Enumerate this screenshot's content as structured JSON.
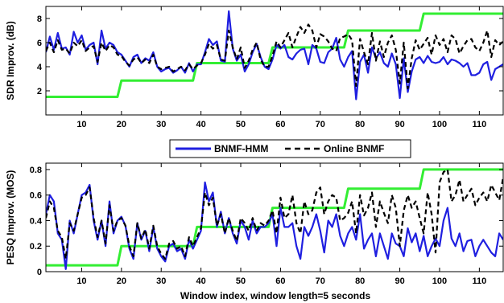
{
  "chart_data": [
    {
      "type": "line",
      "ylabel": "SDR Improv. (dB)",
      "xlabel": "",
      "xlim": [
        1,
        116
      ],
      "ylim": [
        0,
        9
      ],
      "xticks": [
        10,
        20,
        30,
        40,
        50,
        60,
        70,
        80,
        90,
        100,
        110
      ],
      "yticks": [
        2,
        4,
        6,
        8
      ],
      "series": [
        {
          "name": "BNMF-HMM",
          "color": "#1f1fe0",
          "style": "solid",
          "x": [
            1,
            2,
            3,
            4,
            5,
            6,
            7,
            8,
            9,
            10,
            11,
            12,
            13,
            14,
            15,
            16,
            17,
            18,
            19,
            20,
            21,
            22,
            23,
            24,
            25,
            26,
            27,
            28,
            29,
            30,
            31,
            32,
            33,
            34,
            35,
            36,
            37,
            38,
            39,
            40,
            41,
            42,
            43,
            44,
            45,
            46,
            47,
            48,
            49,
            50,
            51,
            52,
            53,
            54,
            55,
            56,
            57,
            58,
            59,
            60,
            61,
            62,
            63,
            64,
            65,
            66,
            67,
            68,
            69,
            70,
            71,
            72,
            73,
            74,
            75,
            76,
            77,
            78,
            79,
            80,
            81,
            82,
            83,
            84,
            85,
            86,
            87,
            88,
            89,
            90,
            91,
            92,
            93,
            94,
            95,
            96,
            97,
            98,
            99,
            100,
            101,
            102,
            103,
            104,
            105,
            106,
            107,
            108,
            109,
            110,
            111,
            112,
            113,
            114,
            115,
            116
          ],
          "y": [
            5.2,
            6.5,
            5.4,
            6.8,
            5.5,
            5.6,
            5.0,
            6.9,
            6.0,
            6.6,
            5.4,
            5.8,
            6.0,
            4.2,
            7.0,
            5.5,
            6.0,
            5.8,
            5.2,
            5.0,
            4.5,
            4.0,
            4.8,
            5.0,
            4.3,
            4.7,
            4.5,
            5.2,
            4.0,
            3.6,
            3.8,
            3.9,
            3.5,
            3.7,
            4.0,
            3.5,
            4.3,
            3.6,
            4.2,
            4.2,
            5.2,
            6.3,
            5.8,
            6.1,
            4.5,
            4.4,
            8.6,
            5.5,
            4.5,
            5.0,
            3.6,
            4.2,
            5.2,
            5.9,
            4.8,
            4.0,
            3.8,
            4.6,
            5.8,
            5.5,
            5.8,
            4.8,
            4.6,
            5.1,
            5.4,
            5.5,
            4.2,
            5.8,
            5.5,
            4.4,
            4.3,
            5.2,
            5.5,
            6.4,
            4.6,
            4.0,
            4.8,
            5.3,
            1.3,
            4.4,
            5.0,
            3.5,
            5.6,
            4.7,
            5.2,
            4.3,
            4.0,
            5.1,
            4.2,
            1.4,
            4.7,
            1.9,
            3.6,
            4.6,
            4.8,
            4.3,
            4.9,
            4.4,
            4.3,
            4.4,
            4.8,
            4.2,
            4.6,
            4.5,
            4.3,
            4.0,
            4.3,
            3.3,
            3.3,
            3.5,
            4.2,
            4.4,
            2.9,
            3.8,
            4.0,
            4.2
          ]
        },
        {
          "name": "Online BNMF",
          "color": "#000000",
          "style": "dashed",
          "x": [
            1,
            2,
            3,
            4,
            5,
            6,
            7,
            8,
            9,
            10,
            11,
            12,
            13,
            14,
            15,
            16,
            17,
            18,
            19,
            20,
            21,
            22,
            23,
            24,
            25,
            26,
            27,
            28,
            29,
            30,
            31,
            32,
            33,
            34,
            35,
            36,
            37,
            38,
            39,
            40,
            41,
            42,
            43,
            44,
            45,
            46,
            47,
            48,
            49,
            50,
            51,
            52,
            53,
            54,
            55,
            56,
            57,
            58,
            59,
            60,
            61,
            62,
            63,
            64,
            65,
            66,
            67,
            68,
            69,
            70,
            71,
            72,
            73,
            74,
            75,
            76,
            77,
            78,
            79,
            80,
            81,
            82,
            83,
            84,
            85,
            86,
            87,
            88,
            89,
            90,
            91,
            92,
            93,
            94,
            95,
            96,
            97,
            98,
            99,
            100,
            101,
            102,
            103,
            104,
            105,
            106,
            107,
            108,
            109,
            110,
            111,
            112,
            113,
            114,
            115,
            116
          ],
          "y": [
            5.3,
            6.0,
            5.2,
            6.2,
            5.4,
            5.5,
            5.1,
            6.0,
            5.7,
            6.2,
            5.3,
            5.6,
            5.7,
            4.4,
            6.0,
            5.3,
            5.8,
            5.6,
            5.0,
            4.9,
            4.4,
            4.1,
            4.6,
            4.8,
            4.3,
            4.6,
            4.3,
            5.0,
            4.0,
            3.8,
            3.9,
            4.0,
            3.6,
            3.8,
            4.0,
            3.7,
            4.2,
            3.8,
            4.1,
            4.3,
            5.0,
            5.9,
            5.5,
            5.8,
            4.6,
            4.5,
            7.0,
            5.6,
            4.6,
            5.6,
            3.9,
            4.5,
            5.4,
            6.0,
            4.6,
            4.0,
            4.0,
            4.9,
            6.1,
            5.6,
            6.2,
            6.8,
            5.6,
            6.5,
            7.3,
            6.8,
            7.5,
            7.0,
            5.6,
            6.7,
            6.5,
            6.1,
            5.5,
            5.3,
            6.4,
            6.5,
            6.7,
            6.2,
            2.4,
            6.3,
            5.2,
            4.2,
            6.8,
            4.5,
            6.1,
            4.8,
            6.0,
            6.6,
            5.4,
            2.6,
            6.0,
            2.2,
            4.7,
            6.2,
            5.4,
            5.9,
            6.4,
            5.0,
            6.6,
            5.8,
            6.3,
            5.2,
            6.6,
            6.3,
            5.1,
            5.7,
            6.2,
            6.3,
            5.6,
            5.3,
            6.0,
            7.0,
            4.8,
            6.2,
            5.8,
            6.1
          ]
        },
        {
          "name": "",
          "color": "#33ee33",
          "style": "solid",
          "x": [
            1,
            19,
            20,
            38,
            39,
            57,
            58,
            76,
            77,
            95,
            96,
            116
          ],
          "y": [
            1.5,
            1.5,
            2.85,
            2.85,
            4.3,
            4.3,
            5.6,
            5.6,
            7.0,
            7.0,
            8.4,
            8.4
          ]
        }
      ]
    },
    {
      "type": "line",
      "ylabel": "PESQ Improv. (MOS)",
      "xlabel": "Window index, window length=5 seconds",
      "xlim": [
        1,
        116
      ],
      "ylim": [
        0,
        0.85
      ],
      "xticks": [
        10,
        20,
        30,
        40,
        50,
        60,
        70,
        80,
        90,
        100,
        110
      ],
      "yticks": [
        0,
        0.2,
        0.4,
        0.6,
        0.8
      ],
      "yticklabels": [
        "0",
        "0.2",
        "0.4",
        "0.6",
        "0.8"
      ],
      "series": [
        {
          "name": "BNMF-HMM",
          "color": "#1f1fe0",
          "style": "solid",
          "x": [
            1,
            2,
            3,
            4,
            5,
            6,
            7,
            8,
            9,
            10,
            11,
            12,
            13,
            14,
            15,
            16,
            17,
            18,
            19,
            20,
            21,
            22,
            23,
            24,
            25,
            26,
            27,
            28,
            29,
            30,
            31,
            32,
            33,
            34,
            35,
            36,
            37,
            38,
            39,
            40,
            41,
            42,
            43,
            44,
            45,
            46,
            47,
            48,
            49,
            50,
            51,
            52,
            53,
            54,
            55,
            56,
            57,
            58,
            59,
            60,
            61,
            62,
            63,
            64,
            65,
            66,
            67,
            68,
            69,
            70,
            71,
            72,
            73,
            74,
            75,
            76,
            77,
            78,
            79,
            80,
            81,
            82,
            83,
            84,
            85,
            86,
            87,
            88,
            89,
            90,
            91,
            92,
            93,
            94,
            95,
            96,
            97,
            98,
            99,
            100,
            101,
            102,
            103,
            104,
            105,
            106,
            107,
            108,
            109,
            110,
            111,
            112,
            113,
            114,
            115,
            116
          ],
          "y": [
            0.45,
            0.6,
            0.55,
            0.3,
            0.25,
            0.02,
            0.4,
            0.3,
            0.45,
            0.6,
            0.62,
            0.68,
            0.4,
            0.25,
            0.4,
            0.2,
            0.55,
            0.3,
            0.4,
            0.43,
            0.36,
            0.18,
            0.1,
            0.38,
            0.25,
            0.32,
            0.16,
            0.35,
            0.18,
            0.12,
            0.08,
            0.2,
            0.22,
            0.16,
            0.18,
            0.1,
            0.25,
            0.18,
            0.25,
            0.32,
            0.7,
            0.55,
            0.62,
            0.35,
            0.47,
            0.3,
            0.42,
            0.3,
            0.22,
            0.4,
            0.35,
            0.25,
            0.4,
            0.3,
            0.35,
            0.35,
            0.38,
            0.45,
            0.2,
            0.5,
            0.35,
            0.35,
            0.38,
            0.2,
            0.1,
            0.35,
            0.28,
            0.35,
            0.45,
            0.32,
            0.15,
            0.4,
            0.35,
            0.45,
            0.28,
            0.2,
            0.3,
            0.35,
            0.25,
            0.45,
            0.18,
            0.25,
            0.3,
            0.12,
            0.3,
            0.2,
            0.1,
            0.3,
            0.22,
            0.2,
            0.12,
            0.34,
            0.23,
            0.3,
            0.16,
            0.28,
            0.12,
            0.2,
            0.26,
            0.2,
            0.4,
            0.5,
            0.26,
            0.2,
            0.3,
            0.16,
            0.24,
            0.25,
            0.12,
            0.2,
            0.25,
            0.2,
            0.15,
            0.12,
            0.3,
            0.25
          ]
        },
        {
          "name": "Online BNMF",
          "color": "#000000",
          "style": "dashed",
          "x": [
            1,
            2,
            3,
            4,
            5,
            6,
            7,
            8,
            9,
            10,
            11,
            12,
            13,
            14,
            15,
            16,
            17,
            18,
            19,
            20,
            21,
            22,
            23,
            24,
            25,
            26,
            27,
            28,
            29,
            30,
            31,
            32,
            33,
            34,
            35,
            36,
            37,
            38,
            39,
            40,
            41,
            42,
            43,
            44,
            45,
            46,
            47,
            48,
            49,
            50,
            51,
            52,
            53,
            54,
            55,
            56,
            57,
            58,
            59,
            60,
            61,
            62,
            63,
            64,
            65,
            66,
            67,
            68,
            69,
            70,
            71,
            72,
            73,
            74,
            75,
            76,
            77,
            78,
            79,
            80,
            81,
            82,
            83,
            84,
            85,
            86,
            87,
            88,
            89,
            90,
            91,
            92,
            93,
            94,
            95,
            96,
            97,
            98,
            99,
            100,
            101,
            102,
            103,
            104,
            105,
            106,
            107,
            108,
            109,
            110,
            111,
            112,
            113,
            114,
            115,
            116
          ],
          "y": [
            0.42,
            0.55,
            0.5,
            0.32,
            0.27,
            0.1,
            0.38,
            0.32,
            0.45,
            0.58,
            0.6,
            0.66,
            0.42,
            0.27,
            0.4,
            0.22,
            0.52,
            0.32,
            0.4,
            0.42,
            0.36,
            0.2,
            0.12,
            0.38,
            0.26,
            0.33,
            0.18,
            0.36,
            0.2,
            0.14,
            0.1,
            0.22,
            0.24,
            0.18,
            0.2,
            0.12,
            0.27,
            0.2,
            0.27,
            0.34,
            0.62,
            0.52,
            0.58,
            0.36,
            0.45,
            0.3,
            0.42,
            0.32,
            0.24,
            0.42,
            0.38,
            0.32,
            0.42,
            0.32,
            0.38,
            0.36,
            0.4,
            0.48,
            0.3,
            0.58,
            0.42,
            0.45,
            0.6,
            0.38,
            0.3,
            0.55,
            0.45,
            0.48,
            0.62,
            0.66,
            0.45,
            0.55,
            0.6,
            0.58,
            0.4,
            0.42,
            0.46,
            0.55,
            0.3,
            0.6,
            0.44,
            0.5,
            0.62,
            0.35,
            0.55,
            0.46,
            0.38,
            0.6,
            0.5,
            0.2,
            0.48,
            0.6,
            0.5,
            0.55,
            0.42,
            0.3,
            0.62,
            0.45,
            0.15,
            0.7,
            0.78,
            0.8,
            0.55,
            0.6,
            0.72,
            0.55,
            0.6,
            0.65,
            0.52,
            0.58,
            0.62,
            0.55,
            0.68,
            0.62,
            0.56,
            0.74
          ]
        },
        {
          "name": "",
          "color": "#33ee33",
          "style": "solid",
          "x": [
            1,
            19,
            20,
            38,
            39,
            57,
            58,
            76,
            77,
            95,
            96,
            116
          ],
          "y": [
            0.05,
            0.05,
            0.2,
            0.2,
            0.35,
            0.35,
            0.5,
            0.5,
            0.65,
            0.65,
            0.8,
            0.8
          ]
        }
      ]
    }
  ],
  "legend": {
    "items": [
      {
        "label": "BNMF-HMM",
        "color": "#1f1fe0",
        "style": "solid"
      },
      {
        "label": "Online BNMF",
        "color": "#000000",
        "style": "dashed"
      }
    ]
  }
}
